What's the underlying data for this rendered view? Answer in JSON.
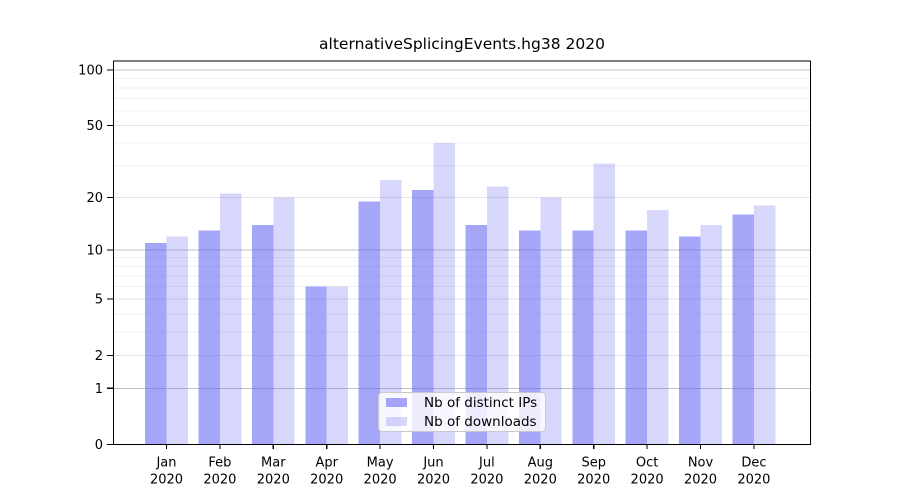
{
  "title": "alternativeSplicingEvents.hg38 2020",
  "chart_data": {
    "type": "bar",
    "title": "alternativeSplicingEvents.hg38 2020",
    "categories": [
      "Jan",
      "Feb",
      "Mar",
      "Apr",
      "May",
      "Jun",
      "Jul",
      "Aug",
      "Sep",
      "Oct",
      "Nov",
      "Dec"
    ],
    "year_label": "2020",
    "series": [
      {
        "name": "Nb of distinct IPs",
        "color": "#6666F5",
        "alpha": 0.58,
        "values": [
          11,
          13,
          14,
          6,
          19,
          22,
          14,
          13,
          13,
          13,
          12,
          16
        ]
      },
      {
        "name": "Nb of downloads",
        "color": "#6666F5",
        "alpha": 0.26,
        "values": [
          12,
          21,
          20,
          6,
          25,
          40,
          23,
          20,
          31,
          17,
          14,
          18
        ]
      }
    ],
    "yscale": "log1p",
    "ylim": [
      0,
      112
    ],
    "yticks": [
      0,
      1,
      2,
      5,
      10,
      20,
      50,
      100
    ],
    "yticks_minor": [
      3,
      4,
      6,
      7,
      8,
      9,
      30,
      40,
      60,
      70,
      80,
      90
    ],
    "xlabel": "",
    "ylabel": "",
    "grid": true,
    "legend_position": "bottom-center",
    "colors": {
      "grid_major": "#c2c2c2",
      "grid_labeled": "#e4e4e8",
      "grid_minor": "#efeff2",
      "axis": "#000000"
    }
  }
}
